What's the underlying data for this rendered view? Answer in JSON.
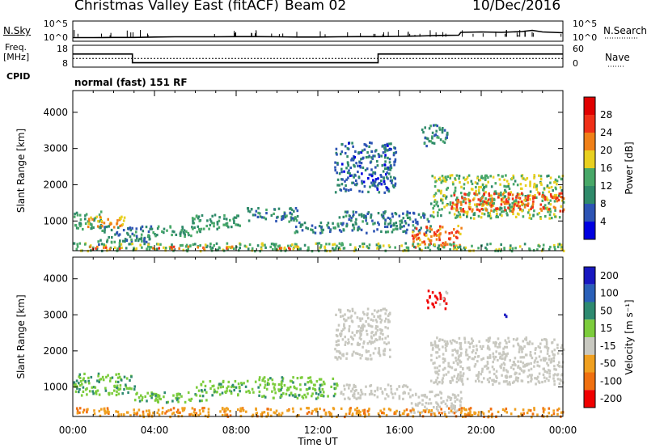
{
  "header": {
    "station": "Christmas Valley East (fitACF)",
    "beam": "Beam 02",
    "date": "10/Dec/2016"
  },
  "left_labels": {
    "nsky": "N.Sky",
    "freq": "Freq.",
    "freq_unit": "[MHz]",
    "cpid": "CPID"
  },
  "right_labels": {
    "nsearch": "N.Search",
    "nave": "Nave"
  },
  "cpid_text": "normal (fast) 151 RF",
  "colors": {
    "trace": "#000000",
    "axis": "#000000"
  },
  "chart_data": [
    {
      "type": "line",
      "id": "noise",
      "x": [
        0,
        1,
        2,
        3,
        4,
        5,
        6,
        7,
        8,
        9,
        10,
        11,
        12,
        13,
        14,
        15,
        16,
        17,
        18,
        18.9,
        19,
        20,
        21,
        22,
        22.5,
        23,
        24
      ],
      "series": [
        {
          "values": [
            0.9,
            0.9,
            0.95,
            0.95,
            1.05,
            1.1,
            1.1,
            1.1,
            1.15,
            1.15,
            1.1,
            1.05,
            1.05,
            1.1,
            1.15,
            1.15,
            1.2,
            1.3,
            1.45,
            1.5,
            2.2,
            2.3,
            2.2,
            2.4,
            2.7,
            2.3,
            2.1
          ]
        }
      ],
      "ylim": [
        0,
        5
      ],
      "y_ticks_left": [
        "10^5",
        "10^0"
      ],
      "y_ticks_right": [
        "10^5",
        "10^0"
      ]
    },
    {
      "type": "line",
      "id": "freq",
      "x": [
        0,
        2.92,
        2.92,
        14.95,
        14.95,
        24
      ],
      "series": [
        {
          "values": [
            14,
            14,
            10,
            10,
            14,
            14
          ]
        },
        {
          "values": [
            12,
            12,
            12,
            12,
            12,
            12
          ]
        }
      ],
      "ylim": [
        8,
        18
      ],
      "y_ticks_left": [
        18,
        8
      ],
      "y_ticks_right": [
        60,
        0
      ]
    },
    {
      "type": "heatmap",
      "id": "power",
      "xlabel": "",
      "ylabel": "Slant Range [km]",
      "xlim": [
        0,
        24
      ],
      "ylim": [
        180,
        4600
      ],
      "y_ticks": [
        1000,
        2000,
        3000,
        4000
      ],
      "colorbar": {
        "label": "Power [dB]",
        "ticks": [
          4,
          8,
          12,
          16,
          20,
          24,
          28
        ],
        "colors": [
          "#0000e0",
          "#2d54b4",
          "#2f8a6a",
          "#48a868",
          "#e8d020",
          "#f08018",
          "#f03018",
          "#e00000"
        ]
      },
      "regions": [
        {
          "t0": 0.0,
          "t1": 1.4,
          "r0": 800,
          "r1": 1300,
          "v": 12
        },
        {
          "t0": 0.5,
          "t1": 2.5,
          "r0": 850,
          "r1": 1150,
          "v": 20
        },
        {
          "t0": 1.2,
          "t1": 3.8,
          "r0": 380,
          "r1": 900,
          "v": 10
        },
        {
          "t0": 3.6,
          "t1": 6.2,
          "r0": 600,
          "r1": 900,
          "v": 12
        },
        {
          "t0": 5.8,
          "t1": 8.2,
          "r0": 800,
          "r1": 1200,
          "v": 12
        },
        {
          "t0": 8.5,
          "t1": 11.0,
          "r0": 1000,
          "r1": 1400,
          "v": 10
        },
        {
          "t0": 10.8,
          "t1": 13.3,
          "r0": 700,
          "r1": 1000,
          "v": 9
        },
        {
          "t0": 12.8,
          "t1": 15.8,
          "r0": 1800,
          "r1": 3200,
          "v": 7
        },
        {
          "t0": 13.0,
          "t1": 17.5,
          "r0": 700,
          "r1": 1300,
          "v": 9
        },
        {
          "t0": 16.5,
          "t1": 19.0,
          "r0": 300,
          "r1": 900,
          "v": 23
        },
        {
          "t0": 17.5,
          "t1": 24.0,
          "r0": 1100,
          "r1": 2300,
          "v": 15
        },
        {
          "t0": 18.5,
          "t1": 24.0,
          "r0": 1300,
          "r1": 1800,
          "v": 24
        },
        {
          "t0": 17.0,
          "t1": 18.3,
          "r0": 3100,
          "r1": 3700,
          "v": 10
        },
        {
          "t0": 0.0,
          "t1": 24.0,
          "r0": 200,
          "r1": 420,
          "v": 14
        },
        {
          "t0": 0.5,
          "t1": 2.3,
          "r0": 250,
          "r1": 330,
          "v": 24
        },
        {
          "t0": 3.7,
          "t1": 7.8,
          "r0": 250,
          "r1": 330,
          "v": 23
        },
        {
          "t0": 9.6,
          "t1": 11.5,
          "r0": 250,
          "r1": 330,
          "v": 22
        }
      ]
    },
    {
      "type": "heatmap",
      "id": "velocity",
      "xlabel": "Time UT",
      "ylabel": "Slant Range [km]",
      "xlim": [
        0,
        24
      ],
      "ylim": [
        180,
        4600
      ],
      "y_ticks": [
        1000,
        2000,
        3000,
        4000
      ],
      "x_ticks": [
        "00:00",
        "04:00",
        "08:00",
        "12:00",
        "16:00",
        "20:00",
        "00:00"
      ],
      "colorbar": {
        "label": "Velocity [m s⁻¹]",
        "ticks": [
          "200",
          "100",
          "50",
          "15",
          "-15",
          "-50",
          "-100",
          "-200"
        ],
        "colors": [
          "#1818c0",
          "#2a60b8",
          "#2e8a70",
          "#7ccc3c",
          "#c8c8c0",
          "#f0a020",
          "#f07010",
          "#f00000"
        ]
      },
      "regions": [
        {
          "t0": 0.0,
          "t1": 3.0,
          "r0": 800,
          "r1": 1400,
          "v": "green"
        },
        {
          "t0": 3.0,
          "t1": 6.5,
          "r0": 600,
          "r1": 900,
          "v": "green"
        },
        {
          "t0": 6.0,
          "t1": 9.0,
          "r0": 800,
          "r1": 1200,
          "v": "green"
        },
        {
          "t0": 9.0,
          "t1": 13.0,
          "r0": 700,
          "r1": 1300,
          "v": "green"
        },
        {
          "t0": 13.0,
          "t1": 16.5,
          "r0": 700,
          "r1": 1100,
          "v": "grey"
        },
        {
          "t0": 12.8,
          "t1": 15.5,
          "r0": 1800,
          "r1": 3200,
          "v": "grey"
        },
        {
          "t0": 16.5,
          "t1": 19.0,
          "r0": 300,
          "r1": 900,
          "v": "grey"
        },
        {
          "t0": 17.5,
          "t1": 24.0,
          "r0": 1100,
          "r1": 2400,
          "v": "grey"
        },
        {
          "t0": 17.3,
          "t1": 18.3,
          "r0": 3200,
          "r1": 3700,
          "v": "red"
        },
        {
          "t0": 0.0,
          "t1": 24.0,
          "r0": 200,
          "r1": 450,
          "v": "orange"
        },
        {
          "t0": 21.0,
          "t1": 21.4,
          "r0": 2950,
          "r1": 3100,
          "v": "blue"
        }
      ]
    }
  ]
}
